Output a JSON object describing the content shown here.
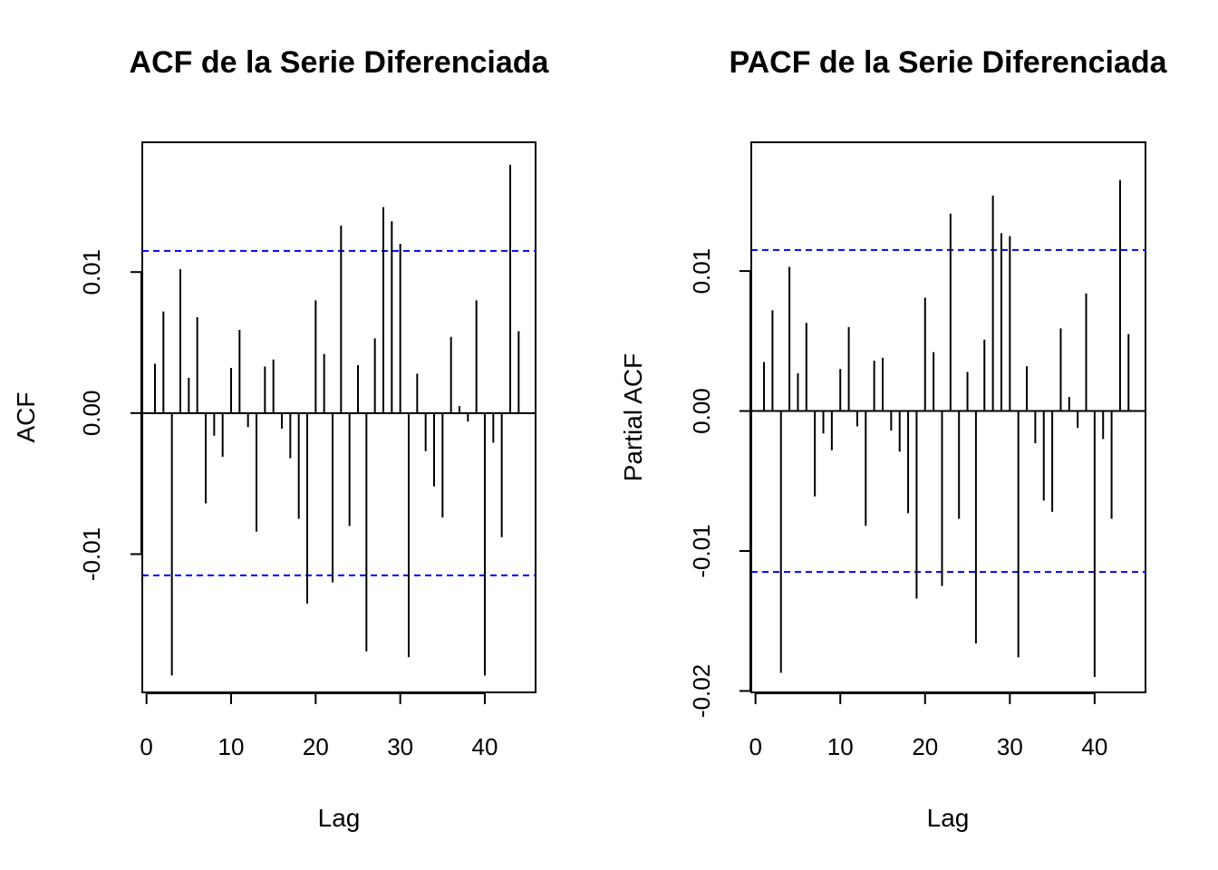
{
  "chart_data": [
    {
      "type": "bar",
      "title": "ACF de la Serie Diferenciada",
      "xlabel": "Lag",
      "ylabel": "ACF",
      "x_ticks": [
        0,
        10,
        20,
        30,
        40
      ],
      "y_ticks": [
        -0.01,
        0.0,
        0.01
      ],
      "y_tick_labels": [
        "-0.01",
        "0.00",
        "0.01"
      ],
      "xlim": [
        -0.5,
        46
      ],
      "ylim": [
        -0.0198,
        0.0192
      ],
      "confidence_bound": 0.0115,
      "bound_color": "#0000ff",
      "lags": [
        1,
        2,
        3,
        4,
        5,
        6,
        7,
        8,
        9,
        10,
        11,
        12,
        13,
        14,
        15,
        16,
        17,
        18,
        19,
        20,
        21,
        22,
        23,
        24,
        25,
        26,
        27,
        28,
        29,
        30,
        31,
        32,
        33,
        34,
        35,
        36,
        37,
        38,
        39,
        40,
        41,
        42,
        43,
        44
      ],
      "values": [
        0.0035,
        0.0072,
        -0.0186,
        0.0102,
        0.0025,
        0.0068,
        -0.0064,
        -0.0016,
        -0.0031,
        0.0032,
        0.0059,
        -0.001,
        -0.0084,
        0.0033,
        0.0038,
        -0.0011,
        -0.0032,
        -0.0075,
        -0.0135,
        0.008,
        0.0042,
        -0.012,
        0.0133,
        -0.008,
        0.0034,
        -0.0169,
        0.0053,
        0.0146,
        0.0136,
        0.012,
        -0.0173,
        0.0028,
        -0.0027,
        -0.0052,
        -0.0074,
        0.0054,
        0.0005,
        -0.0006,
        0.008,
        -0.0186,
        -0.0021,
        -0.0088,
        0.0176,
        0.0058
      ]
    },
    {
      "type": "bar",
      "title": "PACF de la Serie Diferenciada",
      "xlabel": "Lag",
      "ylabel": "Partial ACF",
      "x_ticks": [
        0,
        10,
        20,
        30,
        40
      ],
      "y_ticks": [
        -0.02,
        -0.01,
        0.0,
        0.01
      ],
      "y_tick_labels": [
        "-0.02",
        "-0.01",
        "0.00",
        "0.01"
      ],
      "xlim": [
        -0.5,
        46
      ],
      "ylim": [
        -0.0201,
        0.0192
      ],
      "confidence_bound": 0.0115,
      "bound_color": "#0000ff",
      "lags": [
        1,
        2,
        3,
        4,
        5,
        6,
        7,
        8,
        9,
        10,
        11,
        12,
        13,
        14,
        15,
        16,
        17,
        18,
        19,
        20,
        21,
        22,
        23,
        24,
        25,
        26,
        27,
        28,
        29,
        30,
        31,
        32,
        33,
        34,
        35,
        36,
        37,
        38,
        39,
        40,
        41,
        42,
        43,
        44
      ],
      "values": [
        0.0035,
        0.0072,
        -0.0187,
        0.0103,
        0.0027,
        0.0063,
        -0.0061,
        -0.0016,
        -0.0028,
        0.003,
        0.006,
        -0.0011,
        -0.0082,
        0.0036,
        0.0038,
        -0.0014,
        -0.0029,
        -0.0073,
        -0.0134,
        0.0081,
        0.0042,
        -0.0125,
        0.0141,
        -0.0077,
        0.0028,
        -0.0166,
        0.0051,
        0.0154,
        0.0127,
        0.0125,
        -0.0176,
        0.0032,
        -0.0023,
        -0.0064,
        -0.0072,
        0.0059,
        0.001,
        -0.0012,
        0.0084,
        -0.019,
        -0.002,
        -0.0077,
        0.0165,
        0.0055
      ]
    }
  ]
}
